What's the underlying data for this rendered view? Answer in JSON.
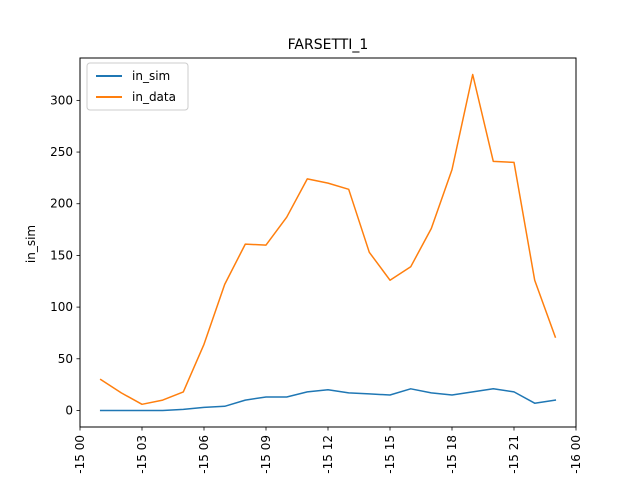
{
  "chart_data": {
    "type": "line",
    "title": "FARSETTI_1",
    "xlabel": "",
    "ylabel": "in_sim",
    "x_ticks": [
      "-15 00",
      "-15 03",
      "-15 06",
      "-15 09",
      "-15 12",
      "-15 15",
      "-15 18",
      "-15 21",
      "-16 00"
    ],
    "xlim": [
      0,
      24
    ],
    "ylim": [
      -16,
      341
    ],
    "y_ticks": [
      0,
      50,
      100,
      150,
      200,
      250,
      300
    ],
    "x": [
      1,
      2,
      3,
      4,
      5,
      6,
      7,
      8,
      9,
      10,
      11,
      12,
      13,
      14,
      15,
      16,
      17,
      18,
      19,
      20,
      21,
      22,
      23
    ],
    "series": [
      {
        "name": "in_sim",
        "color": "#1f77b4",
        "values": [
          0,
          0,
          0,
          0,
          1,
          3,
          4,
          10,
          13,
          13,
          18,
          20,
          17,
          16,
          15,
          21,
          17,
          15,
          18,
          21,
          18,
          7,
          10
        ]
      },
      {
        "name": "in_data",
        "color": "#ff7f0e",
        "values": [
          30,
          17,
          6,
          10,
          18,
          64,
          122,
          161,
          160,
          187,
          224,
          220,
          214,
          153,
          126,
          139,
          176,
          233,
          325,
          241,
          240,
          126,
          71
        ]
      }
    ],
    "legend_position": "top-left",
    "grid": false
  }
}
